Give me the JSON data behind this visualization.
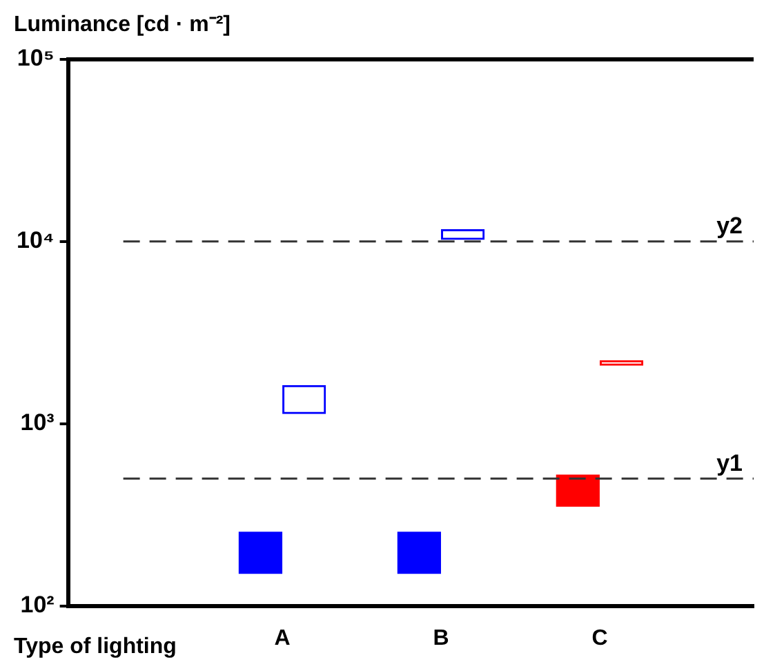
{
  "chart_data": {
    "type": "bar",
    "ylabel": "Luminance [cd · m⁻²]",
    "xlabel": "Type of lighting",
    "categories": [
      "A",
      "B",
      "C"
    ],
    "series": [
      {
        "colors": [
          "#0000ff",
          "#0000ff",
          "#ff0000"
        ],
        "base": [
          150,
          150,
          350
        ],
        "values": [
          105,
          105,
          175
        ]
      },
      {
        "colors": [
          "#0000ff",
          "#0000ff",
          "#ff0000"
        ],
        "base": [
          1130,
          10200,
          2080
        ],
        "values": [
          500,
          1500,
          150
        ]
      }
    ],
    "log": "y",
    "ylim": [
      100,
      100000
    ],
    "yticks": [
      {
        "value": 100,
        "label": "10²"
      },
      {
        "value": 1000,
        "label": "10³"
      },
      {
        "value": 10000,
        "label": "10⁴"
      },
      {
        "value": 100000,
        "label": "10⁵"
      }
    ],
    "ref_lines": [
      {
        "axis": "y",
        "value": 500,
        "label": "y1",
        "color": "#333333",
        "line_style": "dashed"
      },
      {
        "axis": "y",
        "value": 10000,
        "label": "y2",
        "color": "#333333",
        "line_style": "dashed"
      }
    ],
    "grid": false,
    "legend": false
  }
}
